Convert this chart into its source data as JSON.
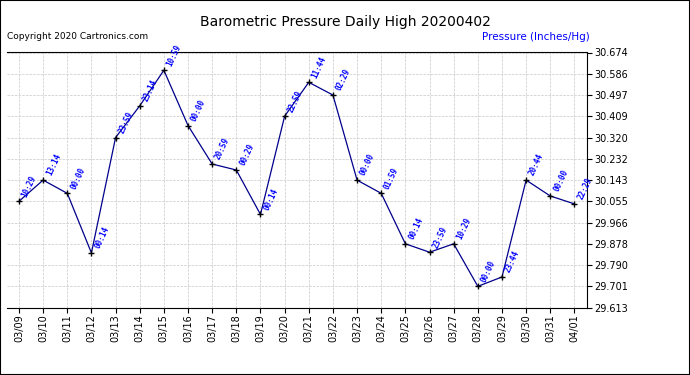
{
  "title": "Barometric Pressure Daily High 20200402",
  "ylabel": "Pressure (Inches/Hg)",
  "copyright": "Copyright 2020 Cartronics.com",
  "line_color": "#00008B",
  "marker_color": "#000000",
  "background_color": "#ffffff",
  "grid_color": "#c8c8c8",
  "title_color": "#000000",
  "ylabel_color": "#0000FF",
  "copyright_color": "#000000",
  "label_color": "#0000FF",
  "ylim": [
    29.613,
    30.674
  ],
  "yticks": [
    29.613,
    29.701,
    29.79,
    29.878,
    29.966,
    30.055,
    30.143,
    30.232,
    30.32,
    30.409,
    30.497,
    30.586,
    30.674
  ],
  "dates": [
    "03/09",
    "03/10",
    "03/11",
    "03/12",
    "03/13",
    "03/14",
    "03/15",
    "03/16",
    "03/17",
    "03/18",
    "03/19",
    "03/20",
    "03/21",
    "03/22",
    "03/23",
    "03/24",
    "03/25",
    "03/26",
    "03/27",
    "03/28",
    "03/29",
    "03/30",
    "03/31",
    "04/01"
  ],
  "values": [
    30.055,
    30.143,
    30.088,
    29.84,
    30.32,
    30.452,
    30.6,
    30.37,
    30.21,
    30.185,
    30.0,
    30.409,
    30.55,
    30.497,
    30.143,
    30.088,
    29.878,
    29.843,
    29.878,
    29.701,
    29.74,
    30.143,
    30.077,
    30.044
  ],
  "point_labels": [
    "10:29",
    "13:14",
    "00:00",
    "00:14",
    "23:59",
    "23:14",
    "10:59",
    "00:00",
    "20:59",
    "00:29",
    "00:14",
    "22:59",
    "11:44",
    "02:29",
    "00:00",
    "01:59",
    "00:14",
    "23:59",
    "10:29",
    "00:00",
    "23:44",
    "20:44",
    "00:00",
    "22:29"
  ],
  "figsize": [
    6.9,
    3.75
  ],
  "dpi": 100
}
